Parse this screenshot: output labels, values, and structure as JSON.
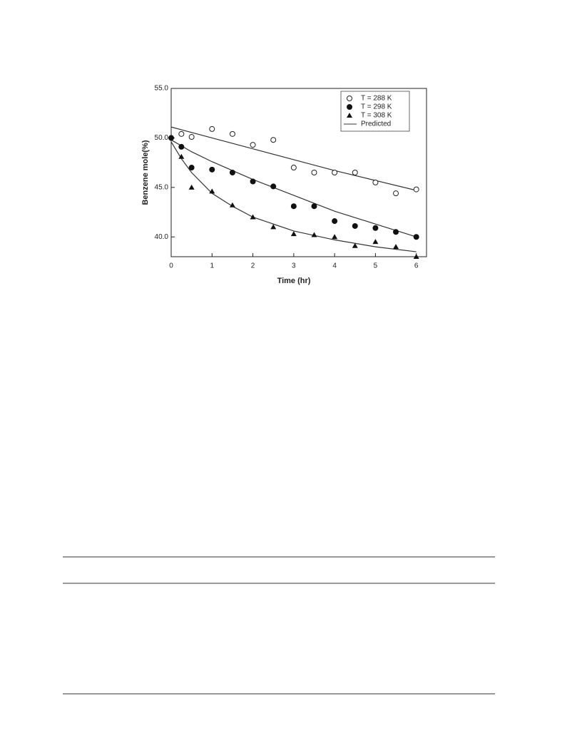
{
  "chart_data": {
    "type": "scatter",
    "xlabel": "Time (hr)",
    "ylabel": "Benzene mole(%)",
    "xlim": [
      0,
      6.25
    ],
    "ylim": [
      38,
      55
    ],
    "xticks": [
      0,
      1,
      2,
      3,
      4,
      5,
      6
    ],
    "yticks": [
      {
        "value": 40,
        "label": "40.0"
      },
      {
        "value": 45,
        "label": "45.0"
      },
      {
        "value": 50,
        "label": "50.0"
      },
      {
        "value": 55,
        "label": "55.0"
      }
    ],
    "legend": "upper right",
    "series": [
      {
        "name": "T = 288 K",
        "marker": "open-circle",
        "color": "#222222",
        "x": [
          0.25,
          0.5,
          1,
          1.5,
          2,
          2.5,
          3,
          3.5,
          4,
          4.5,
          5,
          5.5,
          6
        ],
        "values": [
          50.4,
          50.1,
          50.9,
          50.4,
          49.3,
          49.8,
          47.0,
          46.5,
          46.5,
          46.5,
          45.5,
          44.4,
          44.8
        ]
      },
      {
        "name": "T = 298 K",
        "marker": "circle",
        "color": "#111111",
        "x": [
          0,
          0.25,
          0.5,
          1,
          1.5,
          2,
          2.5,
          3,
          3.5,
          4,
          4.5,
          5,
          5.5,
          6
        ],
        "values": [
          50.0,
          49.1,
          47.0,
          46.8,
          46.5,
          45.6,
          45.1,
          43.1,
          43.1,
          41.6,
          41.1,
          40.9,
          40.5,
          40.0
        ]
      },
      {
        "name": "T = 308 K",
        "marker": "triangle",
        "color": "#111111",
        "x": [
          0.25,
          0.5,
          1,
          1.5,
          2,
          2.5,
          3,
          3.5,
          4,
          4.5,
          5,
          5.5,
          6
        ],
        "values": [
          48.1,
          45.0,
          44.6,
          43.2,
          42.0,
          41.0,
          40.3,
          40.2,
          40.0,
          39.1,
          39.5,
          39.0,
          38.0
        ]
      }
    ],
    "predicted": {
      "name": "Predicted",
      "color": "#333333",
      "lines": [
        {
          "x": [
            0,
            1,
            2,
            3,
            4,
            5,
            6
          ],
          "values": [
            51.1,
            50.0,
            48.9,
            47.8,
            46.7,
            45.7,
            44.7
          ]
        },
        {
          "x": [
            0,
            0.5,
            1,
            2,
            3,
            4,
            5,
            6
          ],
          "values": [
            49.8,
            48.6,
            47.6,
            45.8,
            44.2,
            42.6,
            41.3,
            40.0
          ]
        },
        {
          "x": [
            0,
            0.25,
            0.5,
            1,
            1.5,
            2,
            3,
            4,
            5,
            6
          ],
          "values": [
            49.6,
            47.9,
            46.5,
            44.4,
            43.1,
            42.0,
            40.6,
            39.7,
            39.0,
            38.5
          ]
        }
      ]
    }
  }
}
